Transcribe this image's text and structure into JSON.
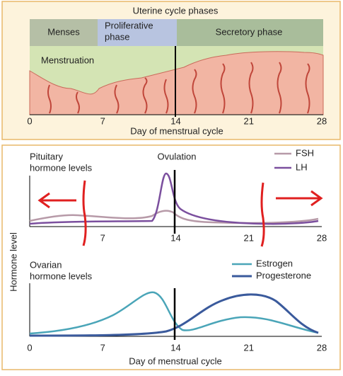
{
  "uterine": {
    "title": "Uterine cycle phases",
    "phases": [
      [
        "Menses"
      ],
      [
        "Proliferative",
        "phase"
      ],
      [
        "Secretory phase"
      ]
    ],
    "label": "Menstruation",
    "ticks": [
      "0",
      "7",
      "14",
      "21",
      "28"
    ],
    "x_label": "Day of menstrual cycle"
  },
  "pituitary": {
    "title_lines": [
      "Pituitary",
      "hormone levels"
    ],
    "event": "Ovulation",
    "legend": [
      "FSH",
      "LH"
    ],
    "ticks": [
      "7",
      "14",
      "21",
      "28"
    ]
  },
  "y_label": "Hormone level",
  "ovarian": {
    "title_lines": [
      "Ovarian",
      "hormone levels"
    ],
    "legend": [
      "Estrogen",
      "Progesterone"
    ],
    "ticks": [
      "0",
      "7",
      "14",
      "21",
      "28"
    ],
    "x_label": "Day of menstrual cycle"
  }
}
